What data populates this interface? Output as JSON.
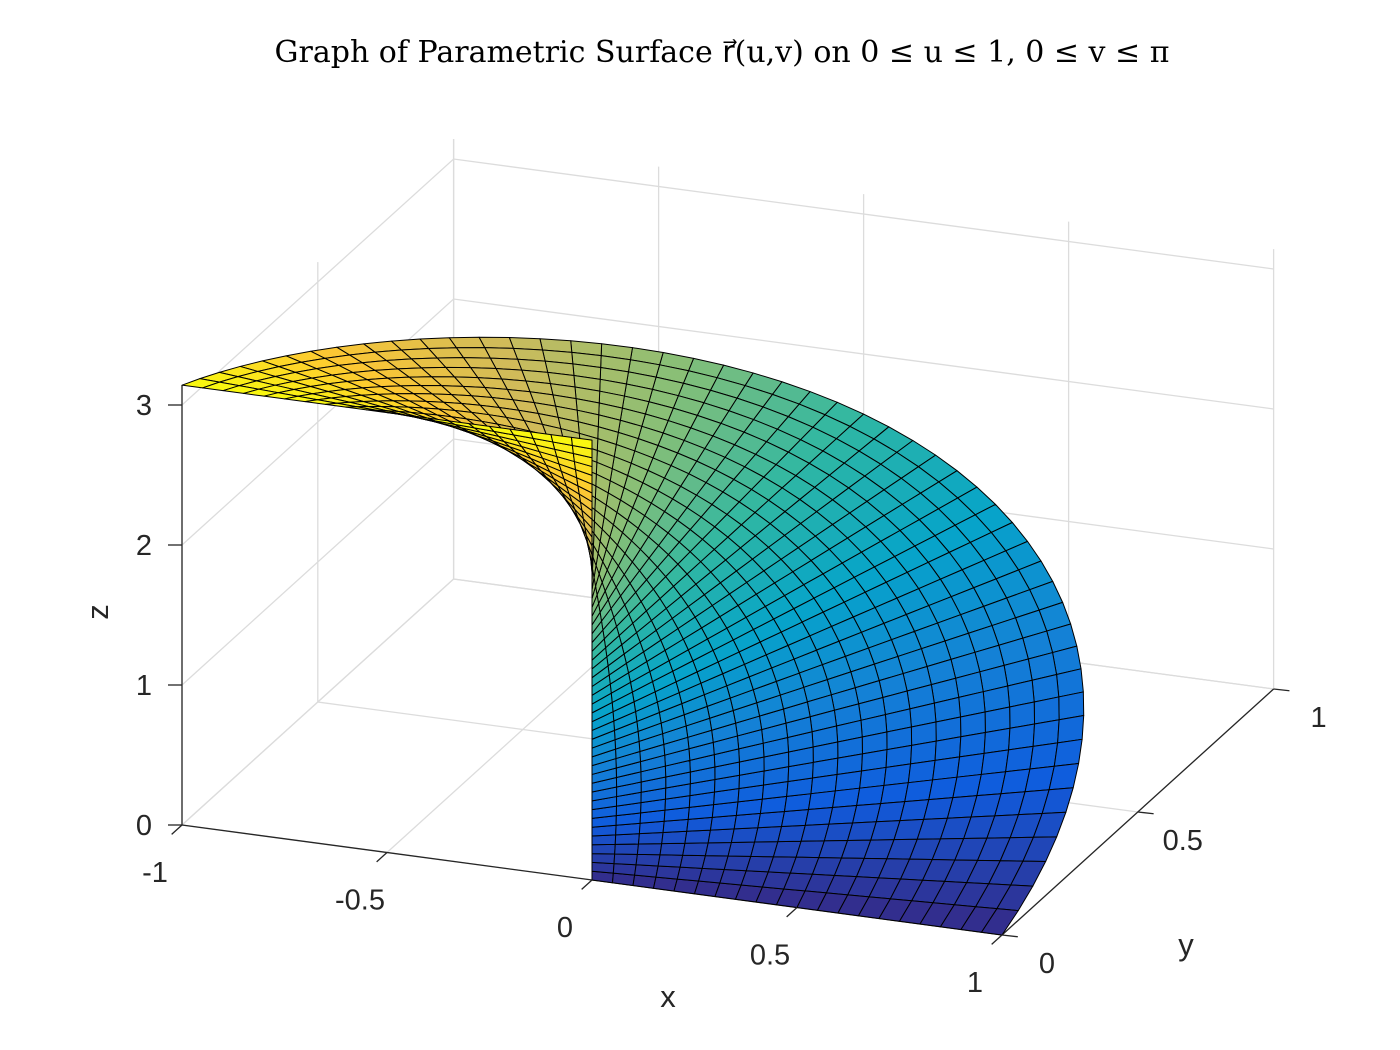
{
  "chart_data": {
    "type": "surface",
    "title": "Graph of Parametric Surface r⃗(u,v) on 0 ≤ u ≤ 1, 0 ≤ v ≤ π",
    "surface": "r(u,v) = (u cos v, u sin v, v)",
    "u_range": [
      0,
      1
    ],
    "v_range": [
      0,
      3.14159
    ],
    "u_samples": 21,
    "v_samples": 51,
    "colormap": "parula",
    "color_by": "z",
    "colormap_colors": [
      "#352a87",
      "#0f5cdd",
      "#1481d6",
      "#06a4ca",
      "#2eb7a4",
      "#87bf77",
      "#d1bb59",
      "#fec832",
      "#f9fb0e"
    ],
    "edge_color": "#000000",
    "grid": true,
    "xlabel": "x",
    "ylabel": "y",
    "zlabel": "z",
    "xlim": [
      -1,
      1
    ],
    "ylim": [
      0,
      1
    ],
    "zlim": [
      0,
      3.14159
    ],
    "x_ticks": [
      "-1",
      "-0.5",
      "0",
      "0.5",
      "1"
    ],
    "x_tick_values": [
      -1,
      -0.5,
      0,
      0.5,
      1
    ],
    "y_ticks": [
      "0",
      "0.5",
      "1"
    ],
    "y_tick_values": [
      0,
      0.5,
      1
    ],
    "z_ticks": [
      "0",
      "1",
      "2",
      "3"
    ],
    "z_tick_values": [
      0,
      1,
      2,
      3
    ]
  }
}
